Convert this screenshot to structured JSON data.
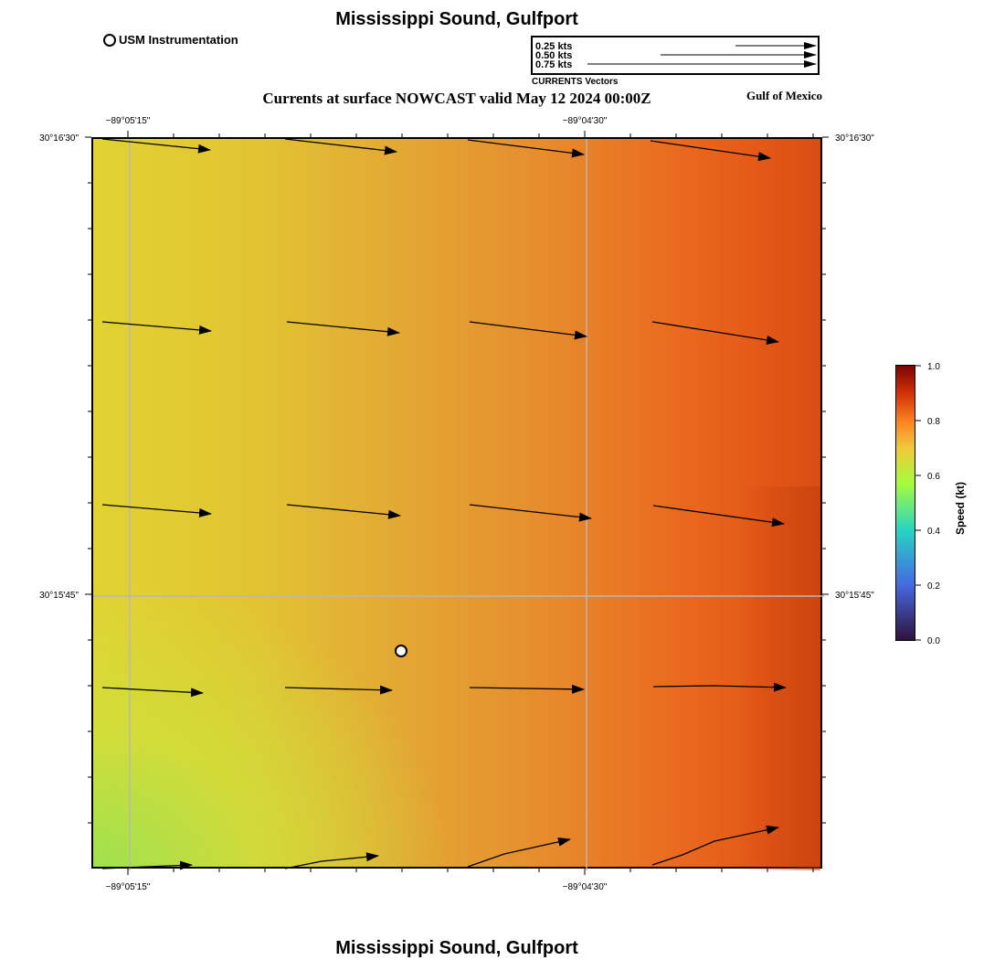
{
  "title": "Mississippi Sound, Gulfport",
  "footer_title": "Mississippi Sound, Gulfport",
  "subtitle": "Currents at surface NOWCAST valid May 12 2024 00:00Z",
  "region_label": "Gulf of Mexico",
  "legend": {
    "instrument_label": "USM Instrumentation",
    "vector_caption": "CURRENTS Vectors",
    "scale_items": [
      "0.25 kts",
      "0.50 kts",
      "0.75 kts"
    ]
  },
  "axes": {
    "lon_top": [
      "−89°05'15\"",
      "−89°04'30\""
    ],
    "lon_bottom": [
      "−89°05'15\"",
      "−89°04'30\""
    ],
    "lat_left": [
      "30°16'30\"",
      "30°15'45\""
    ],
    "lat_right": [
      "30°16'30\"",
      "30°15'45\""
    ]
  },
  "colorbar": {
    "title": "Speed (kt)",
    "ticks": [
      "0.0",
      "0.2",
      "0.4",
      "0.6",
      "0.8",
      "1.0"
    ],
    "range": [
      0.0,
      1.0
    ]
  },
  "colors": {
    "low_speed": "#a5e24f",
    "mid_speed": "#e2c433",
    "high_speed": "#ea6a1f",
    "max_speed": "#c44512"
  }
}
